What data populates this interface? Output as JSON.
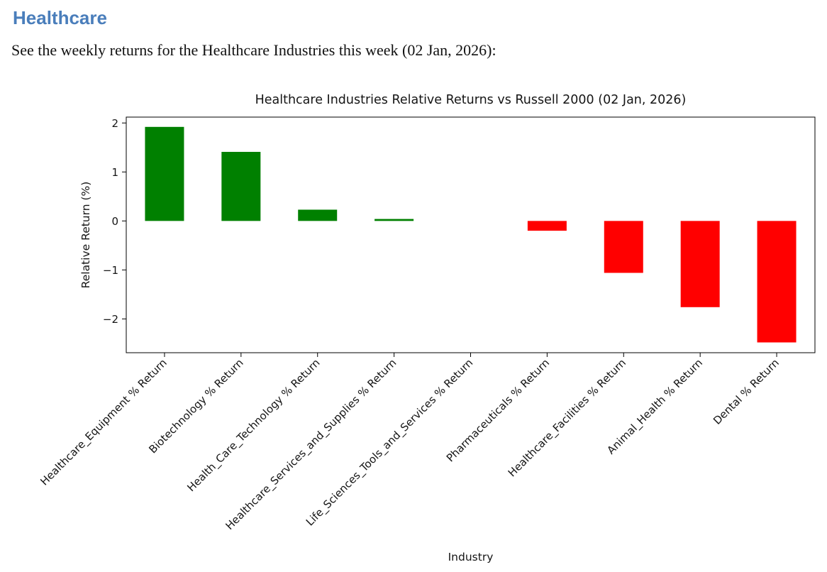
{
  "page": {
    "heading": "Healthcare",
    "heading_color": "#4a7ebb",
    "subtitle": "See the weekly returns for the Healthcare Industries this week (02 Jan, 2026):"
  },
  "chart_data": {
    "type": "bar",
    "title": "Healthcare Industries Relative Returns vs Russell 2000 (02 Jan, 2026)",
    "xlabel": "Industry",
    "ylabel": "Relative Return (%)",
    "categories": [
      "Healthcare_Equipment % Return",
      "Biotechnology % Return",
      "Health_Care_Technology % Return",
      "Healthcare_Services_and_Supplies % Return",
      "Life_Sciences_Tools_and_Services % Return",
      "Pharmaceuticals % Return",
      "Healthcare_Facilities % Return",
      "Animal_Health % Return",
      "Dental % Return"
    ],
    "values": [
      1.92,
      1.41,
      0.23,
      0.04,
      0.0,
      -0.2,
      -1.06,
      -1.76,
      -2.48
    ],
    "bar_colors": {
      "positive": "#008000",
      "negative": "#ff0000"
    },
    "yticks": [
      2,
      1,
      0,
      -1,
      -2
    ],
    "ylim": [
      -2.69,
      2.12
    ],
    "grid": false,
    "legend": "none",
    "x_tick_rotation": 45
  }
}
